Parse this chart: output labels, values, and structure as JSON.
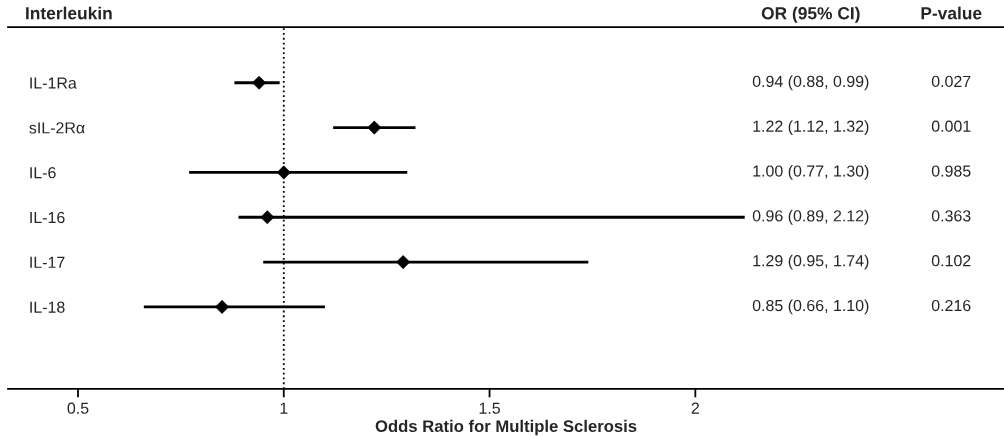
{
  "chart_data": {
    "type": "scatter",
    "orientation": "horizontal",
    "ylabel": "Interleukin",
    "xlabel": "Odds Ratio for Multiple Sclerosis",
    "categories": [
      "IL-1Ra",
      "sIL-2Rα",
      "IL-6",
      "IL-16",
      "IL-17",
      "IL-18"
    ],
    "values": [
      0.94,
      1.22,
      1.0,
      0.96,
      1.29,
      0.85
    ],
    "errors": [
      [
        0.88,
        0.99
      ],
      [
        1.12,
        1.32
      ],
      [
        0.77,
        1.3
      ],
      [
        0.89,
        2.12
      ],
      [
        0.95,
        1.74
      ],
      [
        0.66,
        1.1
      ]
    ],
    "color": "#000000",
    "marker": "diamond",
    "xlim": [
      0.33,
      2.75
    ],
    "xticks": [
      0.5,
      1,
      1.5,
      2
    ],
    "ref_lines": [
      {
        "axis": "x",
        "value": 1,
        "color": "#000000",
        "line_style": "dotted"
      }
    ],
    "annotations": [
      "OR (95% CI)",
      "P-value",
      "0.94 (0.88, 0.99)",
      "1.22 (1.12, 1.32)",
      "1.00 (0.77, 1.30)",
      "0.96 (0.89, 2.12)",
      "1.29 (0.95, 1.74)",
      "0.85 (0.66, 1.10)",
      "0.027",
      "0.001",
      "0.985",
      "0.363",
      "0.102",
      "0.216"
    ],
    "grid": false,
    "legend": false
  }
}
